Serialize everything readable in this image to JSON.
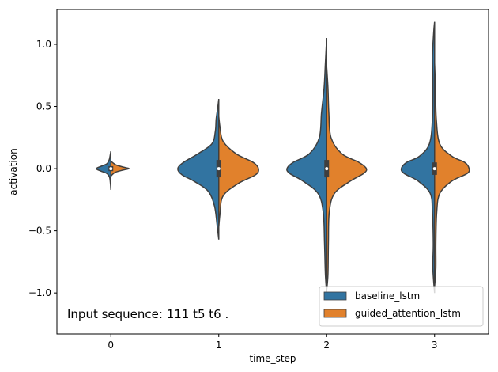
{
  "chart_data": {
    "type": "violin",
    "split": true,
    "xlabel": "time_step",
    "ylabel": "activation",
    "categories": [
      "0",
      "1",
      "2",
      "3"
    ],
    "ylim": [
      -1.33,
      1.28
    ],
    "yticks": [
      -1.0,
      -0.5,
      0.0,
      0.5,
      1.0
    ],
    "ytick_labels": [
      "−1.0",
      "−0.5",
      "0.0",
      "0.5",
      "1.0"
    ],
    "grid": false,
    "legend_position": "lower right",
    "annotation": "Input sequence: 111 t5 t6 .",
    "series": [
      {
        "name": "baseline_lstm",
        "color": "#3274a1",
        "violins": [
          {
            "min": -0.17,
            "max": 0.14,
            "median": 0.0,
            "q1": -0.02,
            "q3": 0.02,
            "profile": [
              [
                -0.17,
                0
              ],
              [
                -0.12,
                0.01
              ],
              [
                -0.07,
                0.03
              ],
              [
                -0.04,
                0.09
              ],
              [
                -0.02,
                0.23
              ],
              [
                0.0,
                0.34
              ],
              [
                0.02,
                0.22
              ],
              [
                0.04,
                0.09
              ],
              [
                0.07,
                0.04
              ],
              [
                0.1,
                0.02
              ],
              [
                0.14,
                0
              ]
            ]
          },
          {
            "min": -0.57,
            "max": 0.56,
            "median": 0.0,
            "q1": -0.07,
            "q3": 0.07,
            "profile": [
              [
                -0.57,
                0
              ],
              [
                -0.45,
                0.04
              ],
              [
                -0.3,
                0.1
              ],
              [
                -0.18,
                0.25
              ],
              [
                -0.1,
                0.58
              ],
              [
                -0.05,
                0.85
              ],
              [
                0.0,
                0.95
              ],
              [
                0.05,
                0.82
              ],
              [
                0.12,
                0.48
              ],
              [
                0.2,
                0.16
              ],
              [
                0.3,
                0.08
              ],
              [
                0.4,
                0.06
              ],
              [
                0.5,
                0.02
              ],
              [
                0.56,
                0
              ]
            ]
          },
          {
            "min": -1.0,
            "max": 1.05,
            "median": 0.0,
            "q1": -0.07,
            "q3": 0.07,
            "profile": [
              [
                -1.0,
                0
              ],
              [
                -0.85,
                0.03
              ],
              [
                -0.6,
                0.05
              ],
              [
                -0.35,
                0.08
              ],
              [
                -0.2,
                0.2
              ],
              [
                -0.1,
                0.55
              ],
              [
                -0.04,
                0.85
              ],
              [
                0.0,
                0.92
              ],
              [
                0.05,
                0.78
              ],
              [
                0.12,
                0.4
              ],
              [
                0.25,
                0.17
              ],
              [
                0.45,
                0.12
              ],
              [
                0.65,
                0.06
              ],
              [
                0.85,
                0.03
              ],
              [
                1.05,
                0
              ]
            ]
          },
          {
            "min": -1.0,
            "max": 1.18,
            "median": 0.0,
            "q1": -0.05,
            "q3": 0.05,
            "profile": [
              [
                -1.0,
                0
              ],
              [
                -0.8,
                0.04
              ],
              [
                -0.6,
                0.03
              ],
              [
                -0.35,
                0.05
              ],
              [
                -0.2,
                0.1
              ],
              [
                -0.1,
                0.38
              ],
              [
                -0.04,
                0.7
              ],
              [
                0.0,
                0.77
              ],
              [
                0.05,
                0.65
              ],
              [
                0.1,
                0.35
              ],
              [
                0.2,
                0.12
              ],
              [
                0.4,
                0.05
              ],
              [
                0.7,
                0.04
              ],
              [
                0.9,
                0.05
              ],
              [
                1.1,
                0.02
              ],
              [
                1.18,
                0
              ]
            ]
          }
        ]
      },
      {
        "name": "guided_attention_lstm",
        "color": "#e1812c",
        "violins": [
          {
            "min": -0.06,
            "max": 0.06,
            "profile": [
              [
                -0.06,
                0
              ],
              [
                -0.03,
                0.1
              ],
              [
                -0.01,
                0.3
              ],
              [
                0.0,
                0.42
              ],
              [
                0.01,
                0.32
              ],
              [
                0.03,
                0.12
              ],
              [
                0.06,
                0
              ]
            ]
          },
          {
            "min": -0.47,
            "max": 0.42,
            "profile": [
              [
                -0.47,
                0
              ],
              [
                -0.36,
                0.03
              ],
              [
                -0.22,
                0.1
              ],
              [
                -0.12,
                0.45
              ],
              [
                -0.05,
                0.85
              ],
              [
                0.0,
                0.92
              ],
              [
                0.05,
                0.8
              ],
              [
                0.12,
                0.4
              ],
              [
                0.22,
                0.1
              ],
              [
                0.33,
                0.03
              ],
              [
                0.42,
                0
              ]
            ]
          },
          {
            "min": -0.98,
            "max": 0.82,
            "profile": [
              [
                -0.98,
                0
              ],
              [
                -0.85,
                0.03
              ],
              [
                -0.6,
                0.04
              ],
              [
                -0.35,
                0.06
              ],
              [
                -0.2,
                0.18
              ],
              [
                -0.1,
                0.55
              ],
              [
                -0.04,
                0.85
              ],
              [
                0.0,
                0.92
              ],
              [
                0.05,
                0.75
              ],
              [
                0.12,
                0.35
              ],
              [
                0.25,
                0.1
              ],
              [
                0.45,
                0.05
              ],
              [
                0.65,
                0.03
              ],
              [
                0.82,
                0
              ]
            ]
          },
          {
            "min": -0.95,
            "max": 0.85,
            "profile": [
              [
                -0.95,
                0
              ],
              [
                -0.8,
                0.03
              ],
              [
                -0.6,
                0.03
              ],
              [
                -0.35,
                0.05
              ],
              [
                -0.2,
                0.12
              ],
              [
                -0.1,
                0.4
              ],
              [
                -0.04,
                0.75
              ],
              [
                0.0,
                0.8
              ],
              [
                0.05,
                0.7
              ],
              [
                0.1,
                0.4
              ],
              [
                0.2,
                0.12
              ],
              [
                0.4,
                0.04
              ],
              [
                0.65,
                0.02
              ],
              [
                0.85,
                0
              ]
            ]
          }
        ]
      }
    ]
  }
}
